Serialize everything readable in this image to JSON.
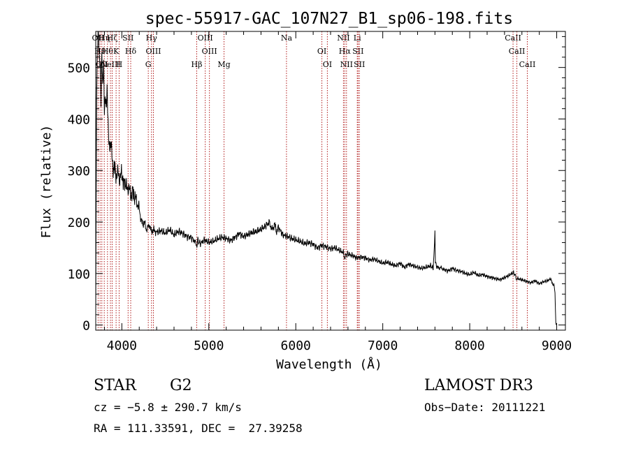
{
  "chart_data": {
    "type": "line",
    "title": "spec-55917-GAC_107N27_B1_sp06-198.fits",
    "xlabel": "Wavelength (Å)",
    "ylabel": "Flux (relative)",
    "xlim": [
      3700,
      9100
    ],
    "ylim": [
      -10,
      570
    ],
    "xticks": [
      4000,
      5000,
      6000,
      7000,
      8000,
      9000
    ],
    "yticks": [
      0,
      100,
      200,
      300,
      400,
      500
    ],
    "grid": false,
    "series": [
      {
        "name": "spectrum",
        "x": [
          3700,
          3710,
          3720,
          3730,
          3740,
          3750,
          3760,
          3770,
          3780,
          3790,
          3800,
          3810,
          3820,
          3830,
          3840,
          3850,
          3860,
          3870,
          3880,
          3890,
          3900,
          3920,
          3940,
          3960,
          3980,
          4000,
          4020,
          4040,
          4060,
          4080,
          4100,
          4120,
          4140,
          4160,
          4180,
          4200,
          4220,
          4240,
          4260,
          4280,
          4300,
          4320,
          4340,
          4360,
          4400,
          4450,
          4500,
          4550,
          4600,
          4650,
          4700,
          4750,
          4800,
          4850,
          4860,
          4870,
          4900,
          4950,
          5000,
          5050,
          5100,
          5150,
          5200,
          5250,
          5300,
          5350,
          5400,
          5450,
          5500,
          5550,
          5600,
          5650,
          5700,
          5720,
          5740,
          5760,
          5780,
          5800,
          5850,
          5900,
          5950,
          6000,
          6050,
          6100,
          6150,
          6200,
          6250,
          6300,
          6350,
          6400,
          6450,
          6500,
          6550,
          6560,
          6570,
          6600,
          6650,
          6700,
          6750,
          6800,
          6850,
          6900,
          6950,
          7000,
          7050,
          7100,
          7150,
          7200,
          7250,
          7300,
          7350,
          7400,
          7450,
          7500,
          7550,
          7580,
          7600,
          7605,
          7610,
          7620,
          7640,
          7660,
          7700,
          7750,
          7800,
          7850,
          7900,
          7950,
          8000,
          8050,
          8100,
          8150,
          8200,
          8250,
          8300,
          8350,
          8400,
          8450,
          8500,
          8530,
          8540,
          8550,
          8600,
          8650,
          8700,
          8750,
          8800,
          8850,
          8900,
          8930,
          8950,
          8970,
          8980,
          8985,
          8990,
          8995
        ],
        "values": [
          20,
          480,
          530,
          560,
          500,
          540,
          460,
          520,
          430,
          500,
          440,
          470,
          410,
          430,
          400,
          380,
          360,
          340,
          330,
          320,
          310,
          300,
          290,
          295,
          280,
          300,
          270,
          280,
          260,
          270,
          250,
          260,
          250,
          245,
          235,
          225,
          205,
          195,
          200,
          185,
          190,
          195,
          180,
          185,
          180,
          183,
          178,
          185,
          175,
          182,
          178,
          172,
          170,
          160,
          155,
          165,
          158,
          165,
          160,
          162,
          167,
          170,
          168,
          164,
          170,
          178,
          172,
          176,
          180,
          182,
          186,
          192,
          200,
          185,
          190,
          195,
          180,
          190,
          175,
          172,
          168,
          165,
          162,
          158,
          160,
          157,
          150,
          155,
          152,
          148,
          150,
          145,
          140,
          130,
          135,
          138,
          135,
          130,
          132,
          130,
          126,
          128,
          124,
          120,
          122,
          118,
          115,
          120,
          112,
          118,
          115,
          112,
          110,
          112,
          115,
          110,
          175,
          120,
          122,
          115,
          110,
          112,
          108,
          105,
          110,
          106,
          104,
          100,
          98,
          102,
          96,
          98,
          94,
          92,
          90,
          88,
          92,
          96,
          102,
          95,
          88,
          90,
          88,
          85,
          82,
          86,
          80,
          84,
          86,
          90,
          80,
          78,
          65,
          30,
          5,
          0
        ]
      }
    ],
    "lines": [
      {
        "x": 3727,
        "label": "OII"
      },
      {
        "x": 3750,
        "label": "Hθ"
      },
      {
        "x": 3770,
        "label": "OII"
      },
      {
        "x": 3798,
        "label": "Hη"
      },
      {
        "x": 3835,
        "label": "Hθ"
      },
      {
        "x": 3869,
        "label": "NeIII"
      },
      {
        "x": 3889,
        "label": "Hζ"
      },
      {
        "x": 3934,
        "label": "K"
      },
      {
        "x": 3969,
        "label": "H"
      },
      {
        "x": 4072,
        "label": "SII"
      },
      {
        "x": 4102,
        "label": "Hδ"
      },
      {
        "x": 4304,
        "label": "G"
      },
      {
        "x": 4341,
        "label": "Hγ"
      },
      {
        "x": 4363,
        "label": "OIII"
      },
      {
        "x": 4861,
        "label": "Hβ"
      },
      {
        "x": 4959,
        "label": "OIII"
      },
      {
        "x": 5007,
        "label": "OIII"
      },
      {
        "x": 5175,
        "label": "Mg"
      },
      {
        "x": 5893,
        "label": "Na"
      },
      {
        "x": 6300,
        "label": "OI"
      },
      {
        "x": 6363,
        "label": "OI"
      },
      {
        "x": 6548,
        "label": "NII"
      },
      {
        "x": 6563,
        "label": "Hα"
      },
      {
        "x": 6583,
        "label": "NII"
      },
      {
        "x": 6707,
        "label": "Li"
      },
      {
        "x": 6716,
        "label": "SII"
      },
      {
        "x": 6731,
        "label": "SII"
      },
      {
        "x": 8498,
        "label": "CaII"
      },
      {
        "x": 8542,
        "label": "CaII"
      },
      {
        "x": 8662,
        "label": "CaII"
      }
    ]
  },
  "info": {
    "object_class": "STAR",
    "subclass": "G2",
    "survey": "LAMOST DR3",
    "cz": "cz = −5.8 ± 290.7 km/s",
    "obs_date": "Obs−Date: 20111221",
    "coords": "RA = 111.33591, DEC =  27.39258"
  },
  "colors": {
    "line": "#000000",
    "marker": "#b01818",
    "background": "#ffffff"
  }
}
